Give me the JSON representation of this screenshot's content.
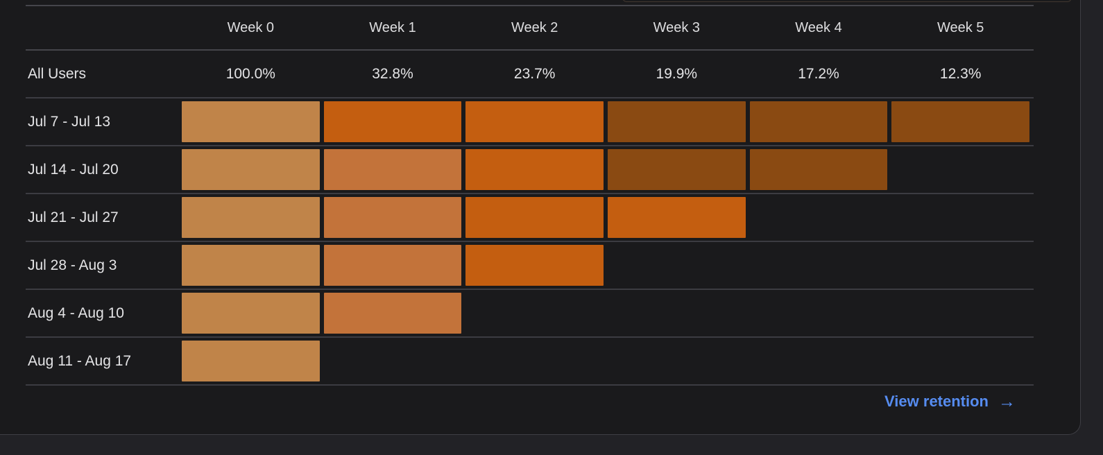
{
  "card": {
    "week_headers": [
      "Week 0",
      "Week 1",
      "Week 2",
      "Week 3",
      "Week 4",
      "Week 5"
    ],
    "all_users_row": {
      "label": "All Users",
      "values": [
        "100.0%",
        "32.8%",
        "23.7%",
        "19.9%",
        "17.2%",
        "12.3%"
      ]
    },
    "cohort_rows": [
      {
        "label": "Jul 7 - Jul 13",
        "cells": [
          "tan",
          "orange",
          "orange",
          "brown",
          "brown",
          "brown"
        ]
      },
      {
        "label": "Jul 14 - Jul 20",
        "cells": [
          "tan",
          "medium",
          "orange",
          "brown",
          "brown"
        ]
      },
      {
        "label": "Jul 21 - Jul 27",
        "cells": [
          "tan",
          "medium",
          "orange",
          "orange"
        ]
      },
      {
        "label": "Jul 28 - Aug 3",
        "cells": [
          "tan",
          "medium",
          "orange"
        ]
      },
      {
        "label": "Aug 4 - Aug 10",
        "cells": [
          "tan",
          "medium"
        ]
      },
      {
        "label": "Aug 11 - Aug 17",
        "cells": [
          "tan"
        ]
      }
    ],
    "cell_colors": {
      "tan": "#c08449",
      "medium": "#c3733a",
      "orange": "#c45e10",
      "brown": "#8a4a12"
    },
    "footer": {
      "link_label": "View retention",
      "arrow": "→",
      "link_color": "#568cf0"
    }
  }
}
